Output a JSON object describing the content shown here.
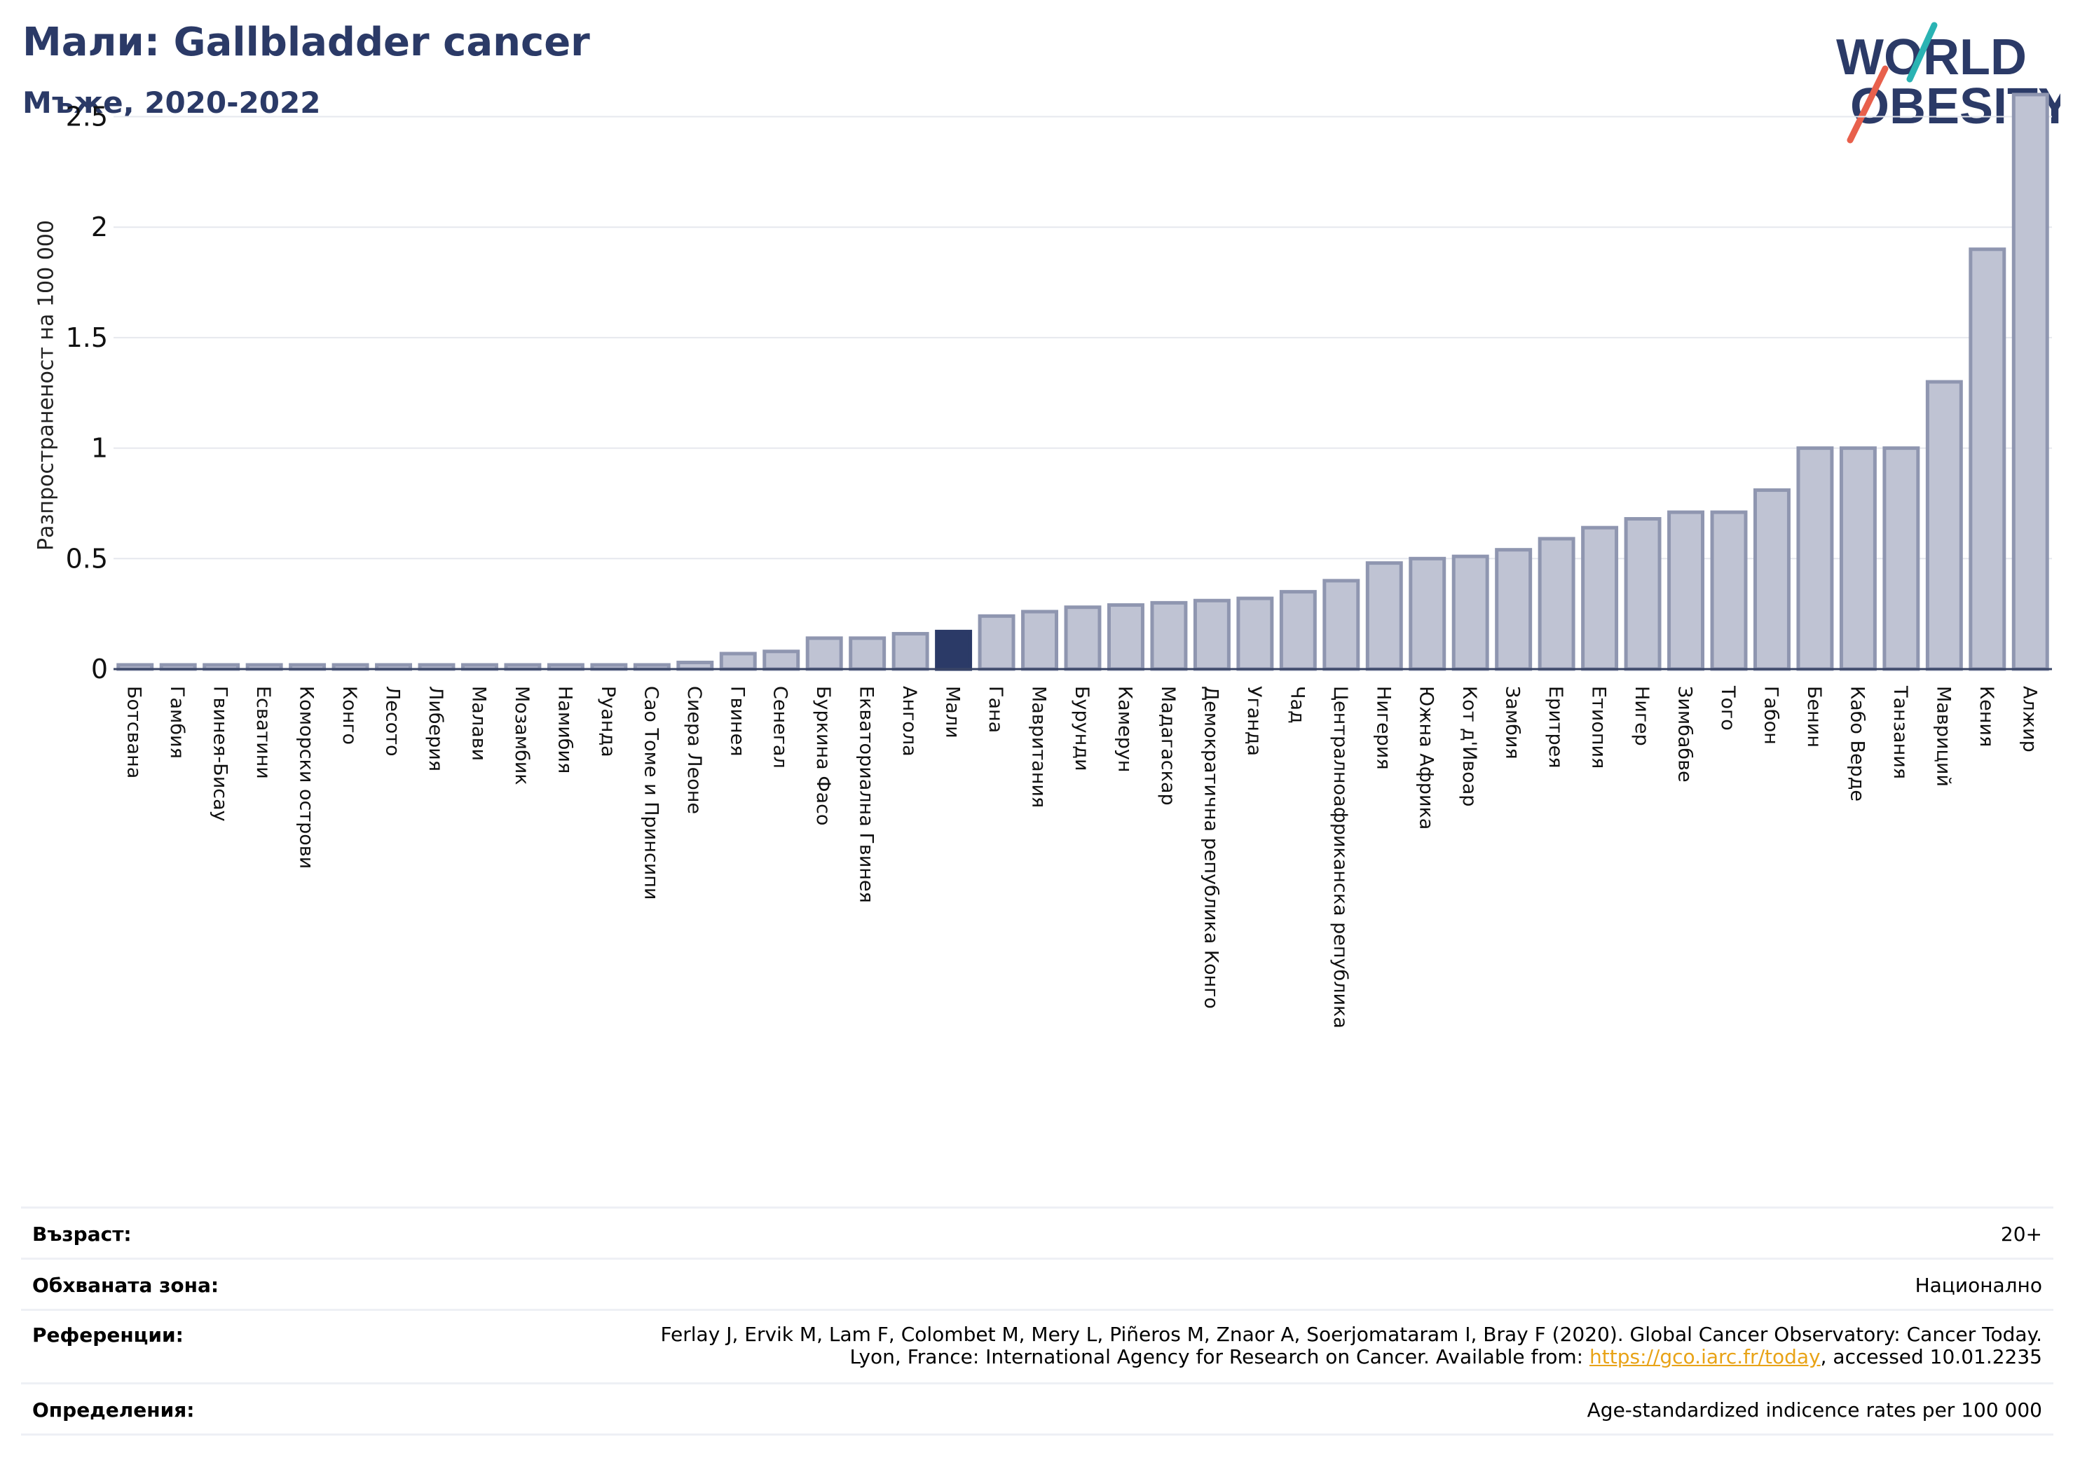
{
  "header": {
    "title": "Мали: Gallbladder cancer",
    "subtitle": "Мъже, 2020-2022"
  },
  "logo": {
    "line1": "WORLD",
    "line2": "OBESITY"
  },
  "colors": {
    "highlight": "#2b3a67",
    "bar_fill": "#bfc3d3",
    "bar_stroke": "#8f96b0",
    "grid": "#e6e8ee",
    "title": "#2b3a67",
    "link": "#e8a317",
    "logo_teal": "#2ab3b3",
    "logo_coral": "#e8604c"
  },
  "chart_data": {
    "type": "bar",
    "ylabel": "Разпространеност  на 100 000",
    "xlabel": "",
    "ylim": [
      0,
      2.6
    ],
    "yticks": [
      0,
      0.5,
      1,
      1.5,
      2,
      2.5
    ],
    "ytick_labels": [
      "0",
      "0.5",
      "1",
      "1.5",
      "2",
      "2.5"
    ],
    "grid": true,
    "highlight": "Мали",
    "categories": [
      "Ботсвана",
      "Гамбия",
      "Гвинея-Бисау",
      "Есватини",
      "Коморски острови",
      "Конго",
      "Лесото",
      "Либерия",
      "Малави",
      "Мозамбик",
      "Намибия",
      "Руанда",
      "Сао Томе и Принсипи",
      "Сиера Леоне",
      "Гвинея",
      "Сенегал",
      "Буркина Фасо",
      "Екваториална Гвинея",
      "Ангола",
      "Мали",
      "Гана",
      "Мавритания",
      "Бурунди",
      "Камерун",
      "Мадагаскар",
      "Демократична република Конго",
      "Уганда",
      "Чад",
      "Централноафриканска република",
      "Нигерия",
      "Южна Африка",
      "Кот д'Ивоар",
      "Замбия",
      "Еритрея",
      "Етиопия",
      "Нигер",
      "Зимбабве",
      "Того",
      "Габон",
      "Бенин",
      "Кабо Верде",
      "Танзания",
      "Мавриций",
      "Кения",
      "Алжир"
    ],
    "values": [
      0.0,
      0.0,
      0.0,
      0.0,
      0.0,
      0.0,
      0.0,
      0.0,
      0.0,
      0.0,
      0.0,
      0.0,
      0.0,
      0.03,
      0.07,
      0.08,
      0.14,
      0.14,
      0.16,
      0.17,
      0.24,
      0.26,
      0.28,
      0.29,
      0.3,
      0.31,
      0.32,
      0.35,
      0.4,
      0.48,
      0.5,
      0.51,
      0.54,
      0.59,
      0.64,
      0.68,
      0.71,
      0.71,
      0.81,
      1.0,
      1.0,
      1.0,
      1.3,
      1.9,
      2.6
    ]
  },
  "info": {
    "age_label": "Възраст:",
    "age_value": "20+",
    "area_label": "Обхваната зона:",
    "area_value": "Национално",
    "ref_label": "Референции:",
    "ref_line1": "Ferlay J, Ervik M, Lam F, Colombet M, Mery L, Piñeros M, Znaor A, Soerjomataram I, Bray F (2020). Global Cancer Observatory: Cancer Today.",
    "ref_line2_pre": "Lyon, France: International Agency for Research on Cancer. Available from: ",
    "ref_link": "https://gco.iarc.fr/today",
    "ref_line2_post": ", accessed 10.01.2235",
    "def_label": "Определения:",
    "def_value": "Age-standardized indicence rates per 100 000"
  }
}
